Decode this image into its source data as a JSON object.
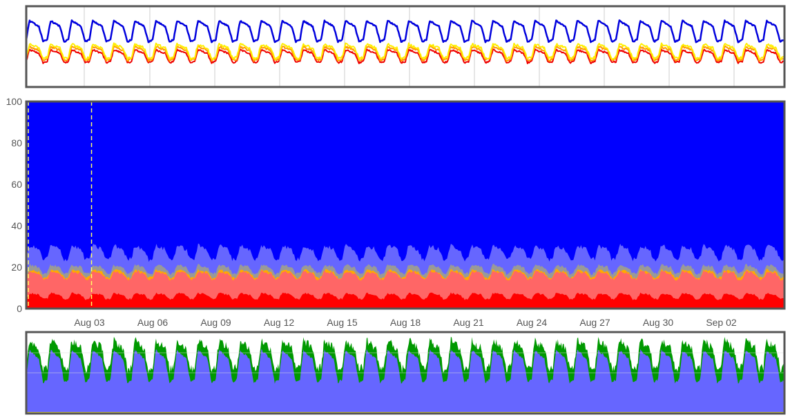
{
  "chart_data": [
    {
      "name": "top-line-chart",
      "type": "line",
      "title": "",
      "x_range_days": [
        0,
        36
      ],
      "ylim": [
        0,
        100
      ],
      "series": [
        {
          "name": "blue",
          "color": "#0000dd",
          "baseline": 56,
          "amplitude": 26,
          "noise": 1.5
        },
        {
          "name": "yellow",
          "color": "#ffee00",
          "baseline": 35,
          "amplitude": 18,
          "noise": 3
        },
        {
          "name": "orange",
          "color": "#ff9900",
          "baseline": 33,
          "amplitude": 17,
          "noise": 2.5
        },
        {
          "name": "red",
          "color": "#ee0000",
          "baseline": 30,
          "amplitude": 16,
          "noise": 2
        }
      ],
      "cycles": 36
    },
    {
      "name": "main-stacked-area",
      "type": "area",
      "title": "",
      "ylim": [
        0,
        100
      ],
      "yticks": [
        0,
        20,
        40,
        60,
        80,
        100
      ],
      "xticks": [
        "Aug 03",
        "Aug 06",
        "Aug 09",
        "Aug 12",
        "Aug 15",
        "Aug 18",
        "Aug 21",
        "Aug 24",
        "Aug 27",
        "Aug 30",
        "Sep 02"
      ],
      "xtick_days": [
        3,
        6,
        9,
        12,
        15,
        18,
        21,
        24,
        27,
        30,
        33
      ],
      "x_range_days": [
        0,
        36
      ],
      "layers": [
        {
          "name": "red",
          "color": "#ff0000",
          "mean": 6,
          "amplitude": 1.5
        },
        {
          "name": "light-red",
          "color": "#ff6666",
          "mean": 16,
          "amplitude": 2
        },
        {
          "name": "orange-band",
          "color": "#ffaa00",
          "mean": 16.8,
          "amplitude": 2
        },
        {
          "name": "grey-band",
          "color": "#999999",
          "mean": 19,
          "amplitude": 2.2
        },
        {
          "name": "light-blue",
          "color": "#6666ff",
          "mean": 27,
          "amplitude": 3.5
        },
        {
          "name": "blue",
          "color": "#0000ff",
          "mean": 100,
          "amplitude": 0
        }
      ],
      "markers_days": [
        0.1,
        3.1
      ],
      "marker_color": "#ffff66",
      "grid": true
    },
    {
      "name": "bottom-area-chart",
      "type": "area",
      "title": "",
      "x_range_days": [
        0,
        36
      ],
      "ylim": [
        0,
        100
      ],
      "layers": [
        {
          "name": "yellow-base",
          "color": "#ffee00",
          "mean": 1,
          "amplitude": 0
        },
        {
          "name": "light-blue",
          "color": "#6666ff",
          "mean": 58,
          "amplitude": 20
        },
        {
          "name": "green",
          "color": "#009900",
          "mean": 72,
          "amplitude": 18
        }
      ],
      "grid": true
    }
  ]
}
